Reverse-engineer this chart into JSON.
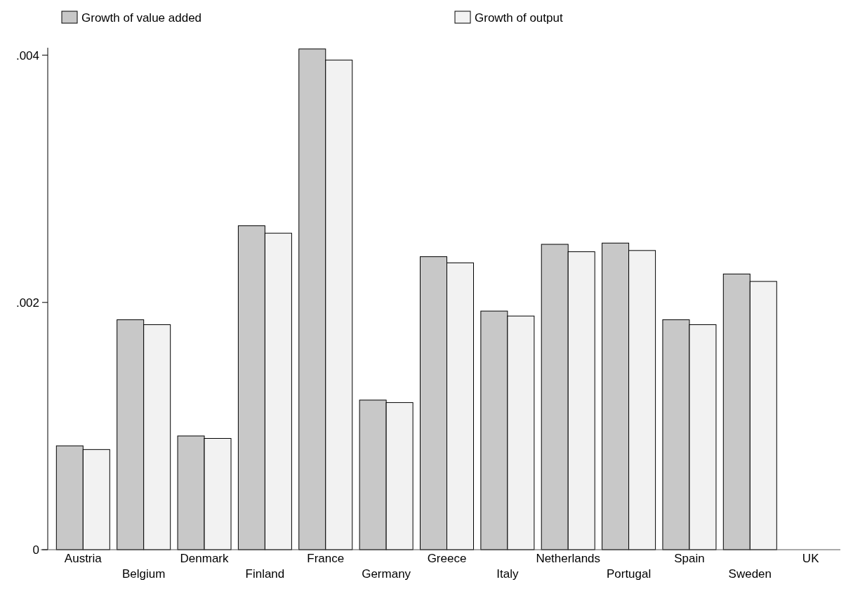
{
  "chart_data": {
    "type": "bar",
    "categories": [
      "Austria",
      "Belgium",
      "Denmark",
      "Finland",
      "France",
      "Germany",
      "Greece",
      "Italy",
      "Netherlands",
      "Portugal",
      "Spain",
      "Sweden",
      "UK"
    ],
    "series": [
      {
        "name": "Growth of value added",
        "color": "#c8c8c8",
        "values": [
          0.00084,
          0.00186,
          0.00092,
          0.00262,
          0.00405,
          0.00121,
          0.00237,
          0.00193,
          0.00247,
          0.00248,
          0.00186,
          0.00223,
          null
        ]
      },
      {
        "name": "Growth of output",
        "color": "#f2f2f2",
        "values": [
          0.00081,
          0.00182,
          0.0009,
          0.00256,
          0.00396,
          0.00119,
          0.00232,
          0.00189,
          0.00241,
          0.00242,
          0.00182,
          0.00217,
          null
        ]
      }
    ],
    "ylim": [
      0,
      0.00406
    ],
    "yticks": [
      {
        "value": 0,
        "label": "0"
      },
      {
        "value": 0.002,
        "label": ".002"
      },
      {
        "value": 0.004,
        "label": ".004"
      }
    ],
    "legend": "top",
    "grid": false
  }
}
